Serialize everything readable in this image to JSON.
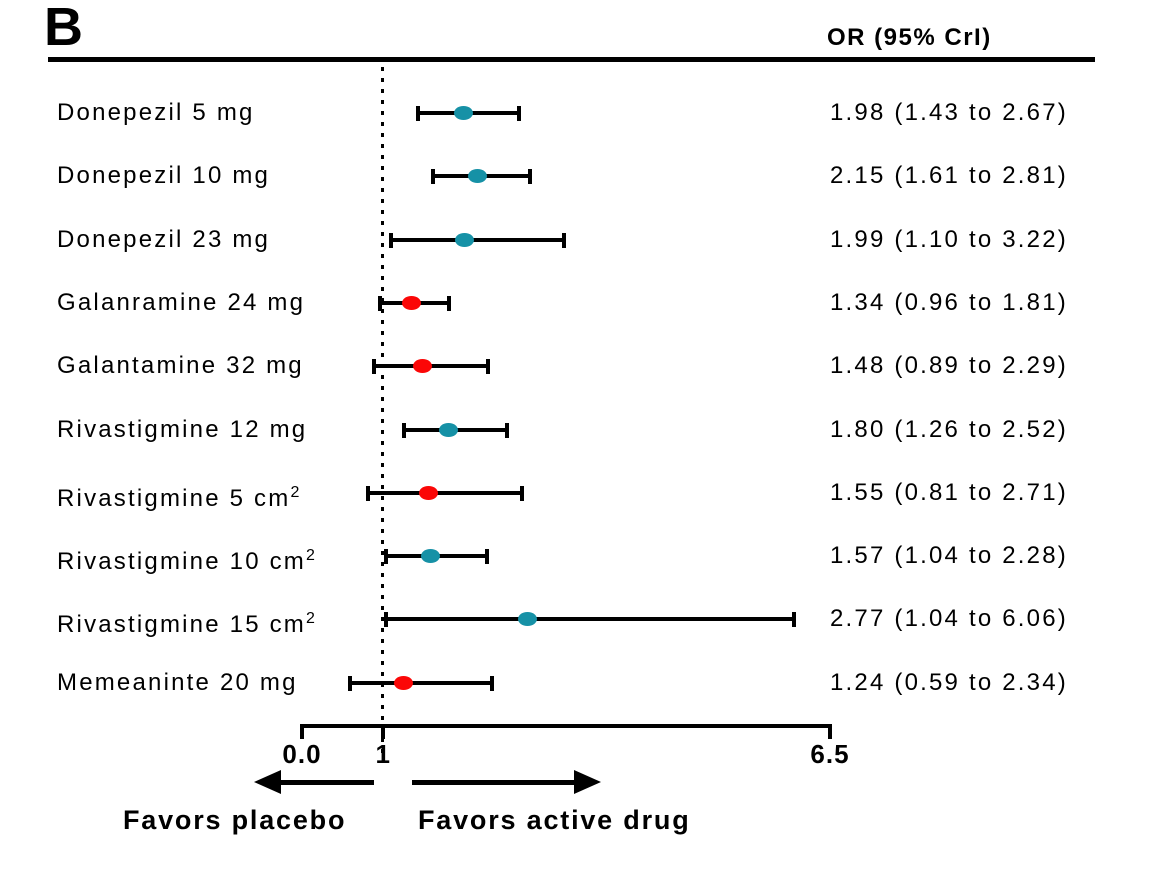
{
  "panel_label": "B",
  "column_header": "OR (95% CrI)",
  "colors": {
    "significant": "#1691a6",
    "nonsignificant": "#fb0707",
    "line": "#000000",
    "background": "#ffffff"
  },
  "axis": {
    "min": 0,
    "max": 6.5,
    "reference_value": 1,
    "ticks": [
      {
        "label": "0.0",
        "value": 0
      },
      {
        "label": "1",
        "value": 1
      },
      {
        "label": "6.5",
        "value": 6.5
      }
    ]
  },
  "footer": {
    "left_label": "Favors placebo",
    "right_label": "Favors active drug"
  },
  "chart_data": {
    "type": "forest",
    "or_column_header": "OR (95% CrI)",
    "xlim": [
      0,
      6.5
    ],
    "reference_line": 1,
    "legend": "teal marker = 95% CrI excludes 1 (significant); red marker = 95% CrI crosses 1",
    "rows": [
      {
        "drug": "Donepezil 5 mg",
        "sup": "",
        "or": 1.98,
        "ci_low": 1.43,
        "ci_high": 2.67,
        "display": "1.98 (1.43 to 2.67)",
        "significant": true
      },
      {
        "drug": "Donepezil 10 mg",
        "sup": "",
        "or": 2.15,
        "ci_low": 1.61,
        "ci_high": 2.81,
        "display": "2.15 (1.61 to 2.81)",
        "significant": true
      },
      {
        "drug": "Donepezil 23 mg",
        "sup": "",
        "or": 1.99,
        "ci_low": 1.1,
        "ci_high": 3.22,
        "display": "1.99 (1.10 to 3.22)",
        "significant": true
      },
      {
        "drug": "Galanramine 24 mg",
        "sup": "",
        "or": 1.34,
        "ci_low": 0.96,
        "ci_high": 1.81,
        "display": "1.34 (0.96 to 1.81)",
        "significant": false
      },
      {
        "drug": "Galantamine 32 mg",
        "sup": "",
        "or": 1.48,
        "ci_low": 0.89,
        "ci_high": 2.29,
        "display": "1.48 (0.89 to 2.29)",
        "significant": false
      },
      {
        "drug": "Rivastigmine 12 mg",
        "sup": "",
        "or": 1.8,
        "ci_low": 1.26,
        "ci_high": 2.52,
        "display": "1.80 (1.26 to 2.52)",
        "significant": true
      },
      {
        "drug": "Rivastigmine 5 cm",
        "sup": "2",
        "or": 1.55,
        "ci_low": 0.81,
        "ci_high": 2.71,
        "display": "1.55 (0.81 to 2.71)",
        "significant": false
      },
      {
        "drug": "Rivastigmine 10 cm",
        "sup": "2",
        "or": 1.57,
        "ci_low": 1.04,
        "ci_high": 2.28,
        "display": "1.57 (1.04 to 2.28)",
        "significant": true
      },
      {
        "drug": "Rivastigmine 15 cm",
        "sup": "2",
        "or": 2.77,
        "ci_low": 1.04,
        "ci_high": 6.06,
        "display": "2.77 (1.04 to 6.06)",
        "significant": true
      },
      {
        "drug": "Memeaninte 20 mg",
        "sup": "",
        "or": 1.24,
        "ci_low": 0.59,
        "ci_high": 2.34,
        "display": "1.24 (0.59 to 2.34)",
        "significant": false
      }
    ]
  }
}
